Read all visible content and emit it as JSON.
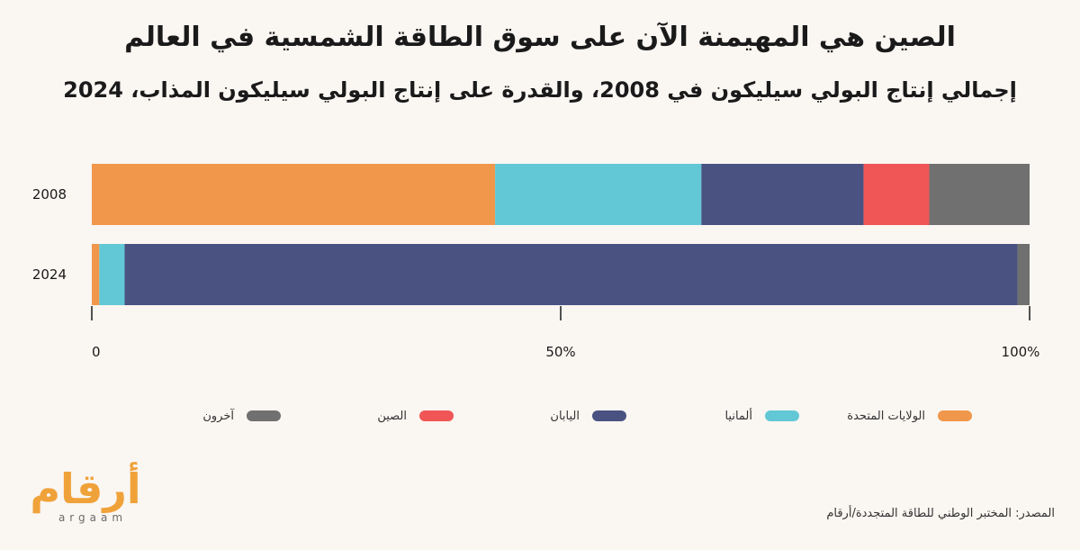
{
  "header": {
    "title": "الصين هي المهيمنة الآن على سوق الطاقة الشمسية في العالم",
    "subtitle": "إجمالي إنتاج البولي سيليكون في 2008، والقدرة على إنتاج البولي سيليكون المذاب، 2024"
  },
  "chart_data": {
    "type": "bar",
    "orientation": "horizontal",
    "stacked": true,
    "normalized_percent": true,
    "categories": [
      "2008",
      "2024"
    ],
    "series": [
      {
        "name": "الولايات المتحدة",
        "color": "#f0974b",
        "values": [
          43,
          0.8
        ]
      },
      {
        "name": "ألمانيا",
        "color": "#62c8d6",
        "values": [
          22,
          2.7
        ]
      },
      {
        "name": "اليابان",
        "color": "#4a5282",
        "values": [
          17.3,
          95.2
        ]
      },
      {
        "name": "الصين",
        "color": "#f05656",
        "values": [
          7,
          0
        ]
      },
      {
        "name": "آخرون",
        "color": "#707070",
        "values": [
          10.7,
          1.3
        ]
      }
    ],
    "x_ticks": [
      "0",
      "50%",
      "100%"
    ],
    "xlim": [
      0,
      100
    ],
    "legend_position": "bottom",
    "grid": false
  },
  "footer": {
    "source": "المصدر: المختبر الوطني للطاقة المتجددة/أرقام",
    "logo_text": "أرقام",
    "logo_sub": "argaam"
  }
}
